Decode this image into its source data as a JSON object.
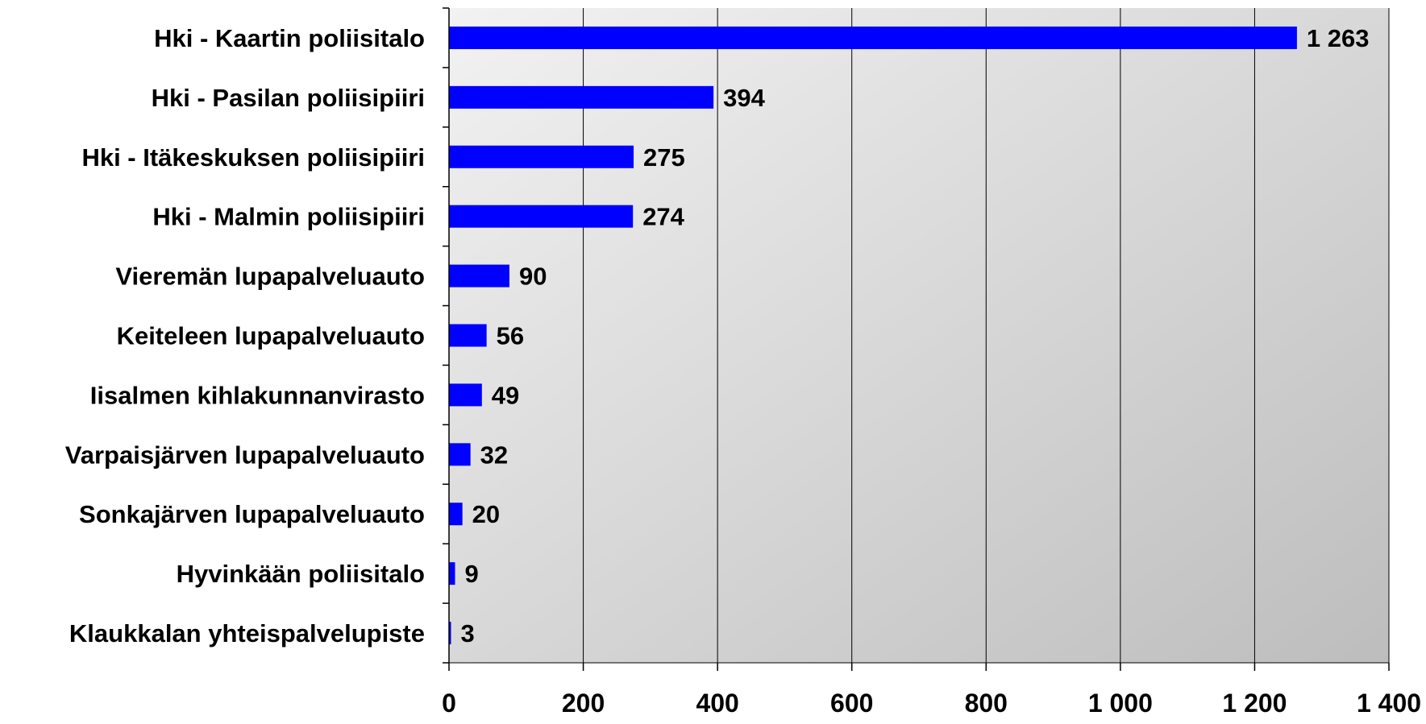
{
  "chart_data": {
    "type": "bar",
    "orientation": "horizontal",
    "categories": [
      "Hki - Kaartin poliisitalo",
      "Hki - Pasilan poliisipiiri",
      "Hki - Itäkeskuksen poliisipiiri",
      "Hki - Malmin poliisipiiri",
      "Vieremän lupapalveluauto",
      "Keiteleen lupapalveluauto",
      "Iisalmen kihlakunnanvirasto",
      "Varpaisjärven lupapalveluauto",
      "Sonkajärven lupapalveluauto",
      "Hyvinkään poliisitalo",
      "Klaukkalan yhteispalvelupiste"
    ],
    "values": [
      1263,
      394,
      275,
      274,
      90,
      56,
      49,
      32,
      20,
      9,
      3
    ],
    "value_labels": [
      "1 263",
      "394",
      "275",
      "274",
      "90",
      "56",
      "49",
      "32",
      "20",
      "9",
      "3"
    ],
    "xlim": [
      0,
      1400
    ],
    "x_ticks": [
      0,
      200,
      400,
      600,
      800,
      1000,
      1200,
      1400
    ],
    "x_tick_labels": [
      "0",
      "200",
      "400",
      "600",
      "800",
      "1 000",
      "1 200",
      "1 400"
    ],
    "title": "",
    "xlabel": "",
    "ylabel": "",
    "grid": "vertical",
    "legend": "none",
    "colors": {
      "bar": "#0000FF",
      "plot_bg_light": "#f2f2f2",
      "plot_bg_dark": "#bdbdbd",
      "gridline": "#000000",
      "text": "#000000"
    }
  }
}
